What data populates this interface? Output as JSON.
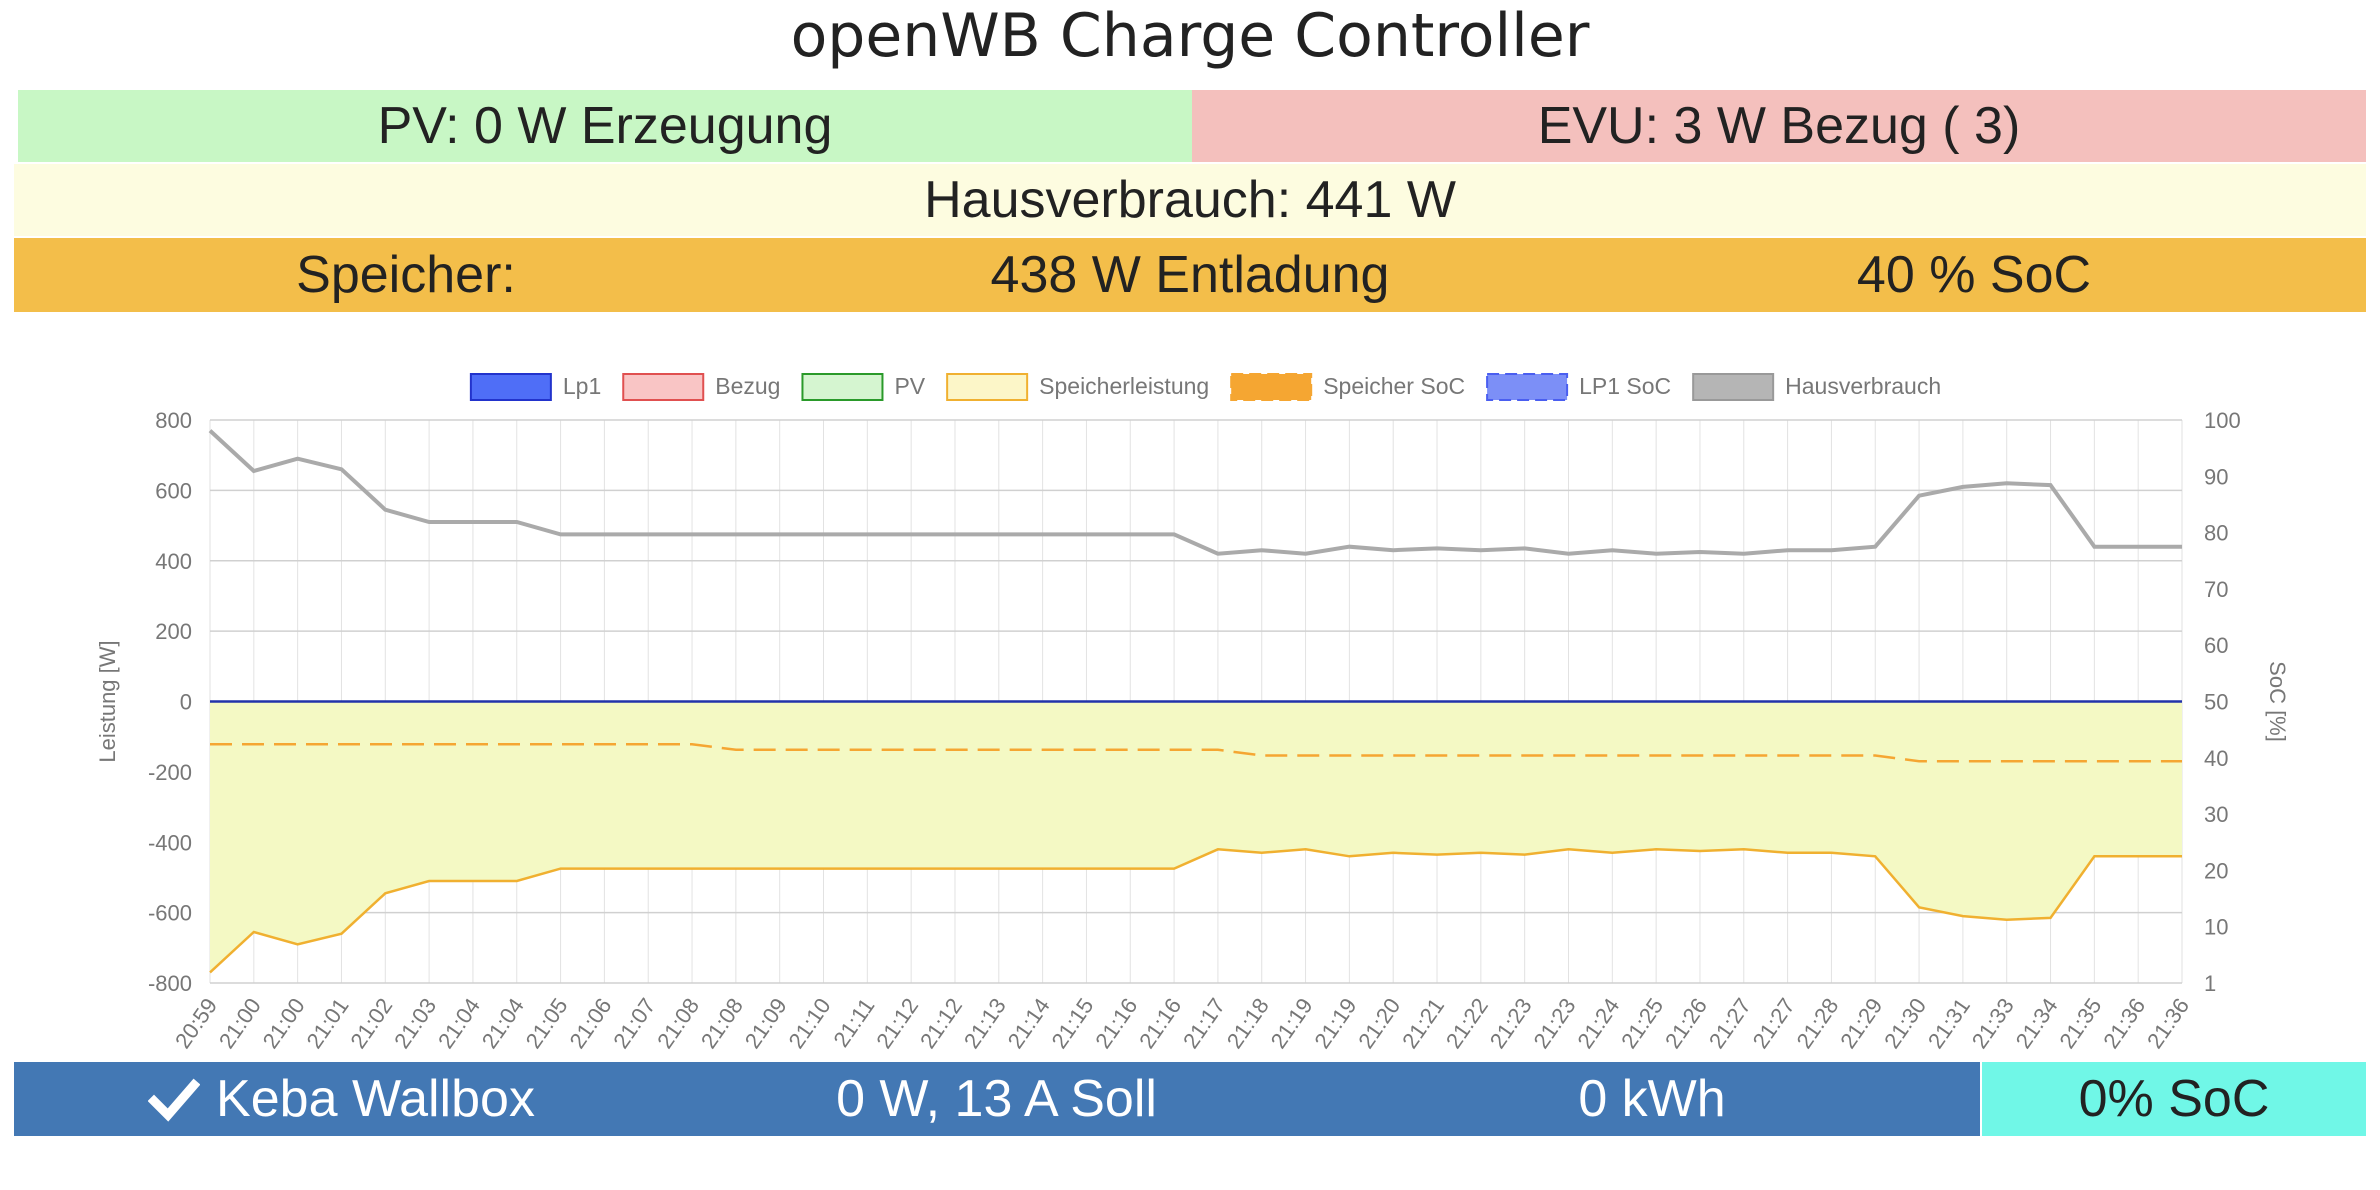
{
  "header": {
    "title": "openWB Charge Controller"
  },
  "pv": {
    "label": "PV: 0 W Erzeugung",
    "color": "#c8f7c5"
  },
  "evu": {
    "label": "EVU: 3 W Bezug ( 3)",
    "color": "#f4c0bd"
  },
  "hausverbrauch": {
    "label": "Hausverbrauch: 441 W"
  },
  "speicher": {
    "label": "Speicher:",
    "power": "438 W Entladung",
    "soc": "40 % SoC"
  },
  "ladepunkt": {
    "icon": "checkmark-icon",
    "name": "Keba Wallbox",
    "power": "0 W, 13 A Soll",
    "energy": "0 kWh",
    "soc": "0% SoC"
  },
  "chart_data": {
    "type": "line",
    "ylabel": "Leistung [W]",
    "y2label": "SoC [%]",
    "ylim": [
      -800,
      800
    ],
    "y2lim": [
      1,
      100
    ],
    "yticks": [
      "800",
      "600",
      "400",
      "200",
      "0",
      "-200",
      "-400",
      "-600",
      "-800"
    ],
    "y2ticks": [
      "100",
      "90",
      "80",
      "70",
      "60",
      "50",
      "40",
      "30",
      "20",
      "10",
      "1"
    ],
    "x": [
      "20:59",
      "21:00",
      "21:00",
      "21:01",
      "21:02",
      "21:03",
      "21:04",
      "21:04",
      "21:05",
      "21:06",
      "21:07",
      "21:08",
      "21:08",
      "21:09",
      "21:10",
      "21:11",
      "21:12",
      "21:12",
      "21:13",
      "21:14",
      "21:15",
      "21:16",
      "21:16",
      "21:17",
      "21:18",
      "21:19",
      "21:19",
      "21:20",
      "21:21",
      "21:22",
      "21:23",
      "21:23",
      "21:24",
      "21:25",
      "21:26",
      "21:27",
      "21:27",
      "21:28",
      "21:29",
      "21:30",
      "21:31",
      "21:33",
      "21:34",
      "21:35",
      "21:36",
      "21:36"
    ],
    "legend": [
      {
        "name": "Lp1",
        "fill": "#4f6ef7",
        "stroke": "#2233cc",
        "dash": false
      },
      {
        "name": "Bezug",
        "fill": "#f9c5c5",
        "stroke": "#e05050",
        "dash": false
      },
      {
        "name": "PV",
        "fill": "#d5f5d0",
        "stroke": "#2a9a2a",
        "dash": false
      },
      {
        "name": "Speicherleistung",
        "fill": "#fcf6c8",
        "stroke": "#f0b030",
        "dash": false
      },
      {
        "name": "Speicher SoC",
        "fill": "#f5a632",
        "stroke": "#f5a632",
        "dash": true
      },
      {
        "name": "LP1 SoC",
        "fill": "#7c8ff7",
        "stroke": "#4a5ef0",
        "dash": true
      },
      {
        "name": "Hausverbrauch",
        "fill": "#b5b5b5",
        "stroke": "#999999",
        "dash": false
      }
    ],
    "series": [
      {
        "name": "Hausverbrauch",
        "color": "#aaaaaa",
        "values": [
          770,
          655,
          690,
          660,
          545,
          510,
          510,
          510,
          475,
          475,
          475,
          475,
          475,
          475,
          475,
          475,
          475,
          475,
          475,
          475,
          475,
          475,
          475,
          420,
          430,
          420,
          440,
          430,
          435,
          430,
          435,
          420,
          430,
          420,
          425,
          420,
          430,
          430,
          440,
          585,
          610,
          620,
          615,
          440,
          440,
          440
        ]
      },
      {
        "name": "Speicherleistung",
        "color": "#f0b030",
        "fill": "#f4f9c4",
        "values": [
          -770,
          -655,
          -690,
          -660,
          -545,
          -510,
          -510,
          -510,
          -475,
          -475,
          -475,
          -475,
          -475,
          -475,
          -475,
          -475,
          -475,
          -475,
          -475,
          -475,
          -475,
          -475,
          -475,
          -420,
          -430,
          -420,
          -440,
          -430,
          -435,
          -430,
          -435,
          -420,
          -430,
          -420,
          -425,
          -420,
          -430,
          -430,
          -440,
          -585,
          -610,
          -620,
          -615,
          -440,
          -440,
          -440
        ]
      },
      {
        "name": "Lp1",
        "color": "#2233aa",
        "values": [
          0,
          0,
          0,
          0,
          0,
          0,
          0,
          0,
          0,
          0,
          0,
          0,
          0,
          0,
          0,
          0,
          0,
          0,
          0,
          0,
          0,
          0,
          0,
          0,
          0,
          0,
          0,
          0,
          0,
          0,
          0,
          0,
          0,
          0,
          0,
          0,
          0,
          0,
          0,
          0,
          0,
          0,
          0,
          0,
          0,
          0
        ]
      },
      {
        "name": "Speicher SoC",
        "color": "#f5a632",
        "axis": "right",
        "values": [
          43,
          43,
          43,
          43,
          43,
          43,
          43,
          43,
          43,
          43,
          43,
          43,
          42,
          42,
          42,
          42,
          42,
          42,
          42,
          42,
          42,
          42,
          42,
          42,
          41,
          41,
          41,
          41,
          41,
          41,
          41,
          41,
          41,
          41,
          41,
          41,
          41,
          41,
          41,
          40,
          40,
          40,
          40,
          40,
          40,
          40
        ]
      }
    ]
  }
}
